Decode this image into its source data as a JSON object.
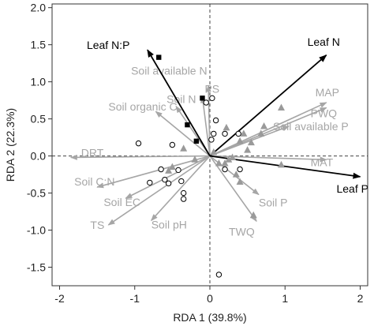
{
  "chart_data": {
    "type": "scatter",
    "title": "",
    "xlabel": "RDA 1 (39.8%)",
    "ylabel": "RDA 2 (22.3%)",
    "xlim": [
      -2.1,
      2.1
    ],
    "ylim": [
      -1.75,
      2.05
    ],
    "x_ticks": [
      -2,
      -1,
      0,
      1,
      2
    ],
    "x_tick_labels": [
      "-2",
      "-1",
      "0",
      "1",
      "2"
    ],
    "y_ticks": [
      -1.5,
      -1.0,
      -0.5,
      0.0,
      0.5,
      1.0,
      1.5,
      2.0
    ],
    "y_tick_labels": [
      "-1.5",
      "-1.0",
      "-0.5",
      "0.0",
      "0.5",
      "1.0",
      "1.5",
      "2.0"
    ],
    "reference_lines": {
      "x": 0,
      "y": 0,
      "style": "dashed"
    },
    "grid": false,
    "colors": {
      "response": "#000000",
      "explanatory": "#a6a6a6",
      "triangle": "#9a9a9a"
    },
    "response_arrows": [
      {
        "name": "Leaf N:P",
        "x": -0.83,
        "y": 1.43
      },
      {
        "name": "Leaf N",
        "x": 1.55,
        "y": 1.36
      },
      {
        "name": "Leaf P",
        "x": 2.0,
        "y": -0.28
      }
    ],
    "explanatory_arrows": [
      {
        "name": "Soil available N",
        "x": -0.02,
        "y": 0.95
      },
      {
        "name": "PS",
        "x": -0.1,
        "y": 0.8
      },
      {
        "name": "Soil N",
        "x": -0.45,
        "y": 0.67
      },
      {
        "name": "Soil organic C",
        "x": -0.72,
        "y": 0.6
      },
      {
        "name": "MAP",
        "x": 1.55,
        "y": 0.72
      },
      {
        "name": "PWQ",
        "x": 1.55,
        "y": 0.65
      },
      {
        "name": "Soil available P",
        "x": 1.05,
        "y": 0.4
      },
      {
        "name": "MAT",
        "x": 1.55,
        "y": -0.05
      },
      {
        "name": "DRT",
        "x": -1.85,
        "y": -0.02
      },
      {
        "name": "Soil C:N",
        "x": -1.5,
        "y": -0.42
      },
      {
        "name": "Soil EC",
        "x": -1.12,
        "y": -0.57
      },
      {
        "name": "TS",
        "x": -1.35,
        "y": -0.93
      },
      {
        "name": "Soil pH",
        "x": -0.78,
        "y": -0.87
      },
      {
        "name": "Soil P",
        "x": 0.65,
        "y": -0.52
      },
      {
        "name": "TWQ",
        "x": 0.62,
        "y": -0.88
      }
    ],
    "series": [
      {
        "name": "open circles",
        "marker": "circle-open",
        "points": [
          [
            -0.95,
            0.17
          ],
          [
            -0.5,
            0.15
          ],
          [
            -0.65,
            -0.18
          ],
          [
            -0.42,
            -0.19
          ],
          [
            -0.6,
            -0.32
          ],
          [
            -0.38,
            -0.34
          ],
          [
            -0.8,
            -0.36
          ],
          [
            -0.55,
            -0.37
          ],
          [
            -0.35,
            -0.5
          ],
          [
            -0.35,
            -0.58
          ],
          [
            -0.05,
            0.72
          ],
          [
            0.03,
            0.78
          ],
          [
            0.08,
            0.48
          ],
          [
            0.05,
            0.3
          ],
          [
            0.02,
            0.22
          ],
          [
            0.2,
            0.3
          ],
          [
            0.38,
            0.3
          ],
          [
            0.2,
            -0.18
          ],
          [
            0.4,
            -0.18
          ],
          [
            0.12,
            -1.6
          ]
        ]
      },
      {
        "name": "filled squares",
        "marker": "square-filled",
        "points": [
          [
            -0.68,
            1.33
          ],
          [
            -0.1,
            0.78
          ],
          [
            -0.3,
            0.42
          ],
          [
            -0.18,
            0.2
          ]
        ]
      },
      {
        "name": "gray triangles",
        "marker": "triangle-filled",
        "points": [
          [
            0.95,
            0.65
          ],
          [
            0.72,
            0.4
          ],
          [
            0.68,
            0.3
          ],
          [
            0.45,
            0.3
          ],
          [
            0.22,
            0.38
          ],
          [
            0.4,
            0.2
          ],
          [
            0.5,
            0.08
          ],
          [
            0.55,
            0.18
          ],
          [
            0.3,
            -0.02
          ],
          [
            0.2,
            -0.1
          ],
          [
            0.35,
            -0.25
          ],
          [
            0.4,
            -0.35
          ],
          [
            0.58,
            -0.8
          ],
          [
            -0.55,
            -0.2
          ],
          [
            0.05,
            0.05
          ],
          [
            -0.35,
            0.1
          ],
          [
            -0.2,
            -0.05
          ],
          [
            0.12,
            -0.1
          ],
          [
            -0.5,
            -0.15
          ],
          [
            0.95,
            -0.12
          ],
          [
            0.25,
            -0.05
          ]
        ]
      }
    ]
  }
}
